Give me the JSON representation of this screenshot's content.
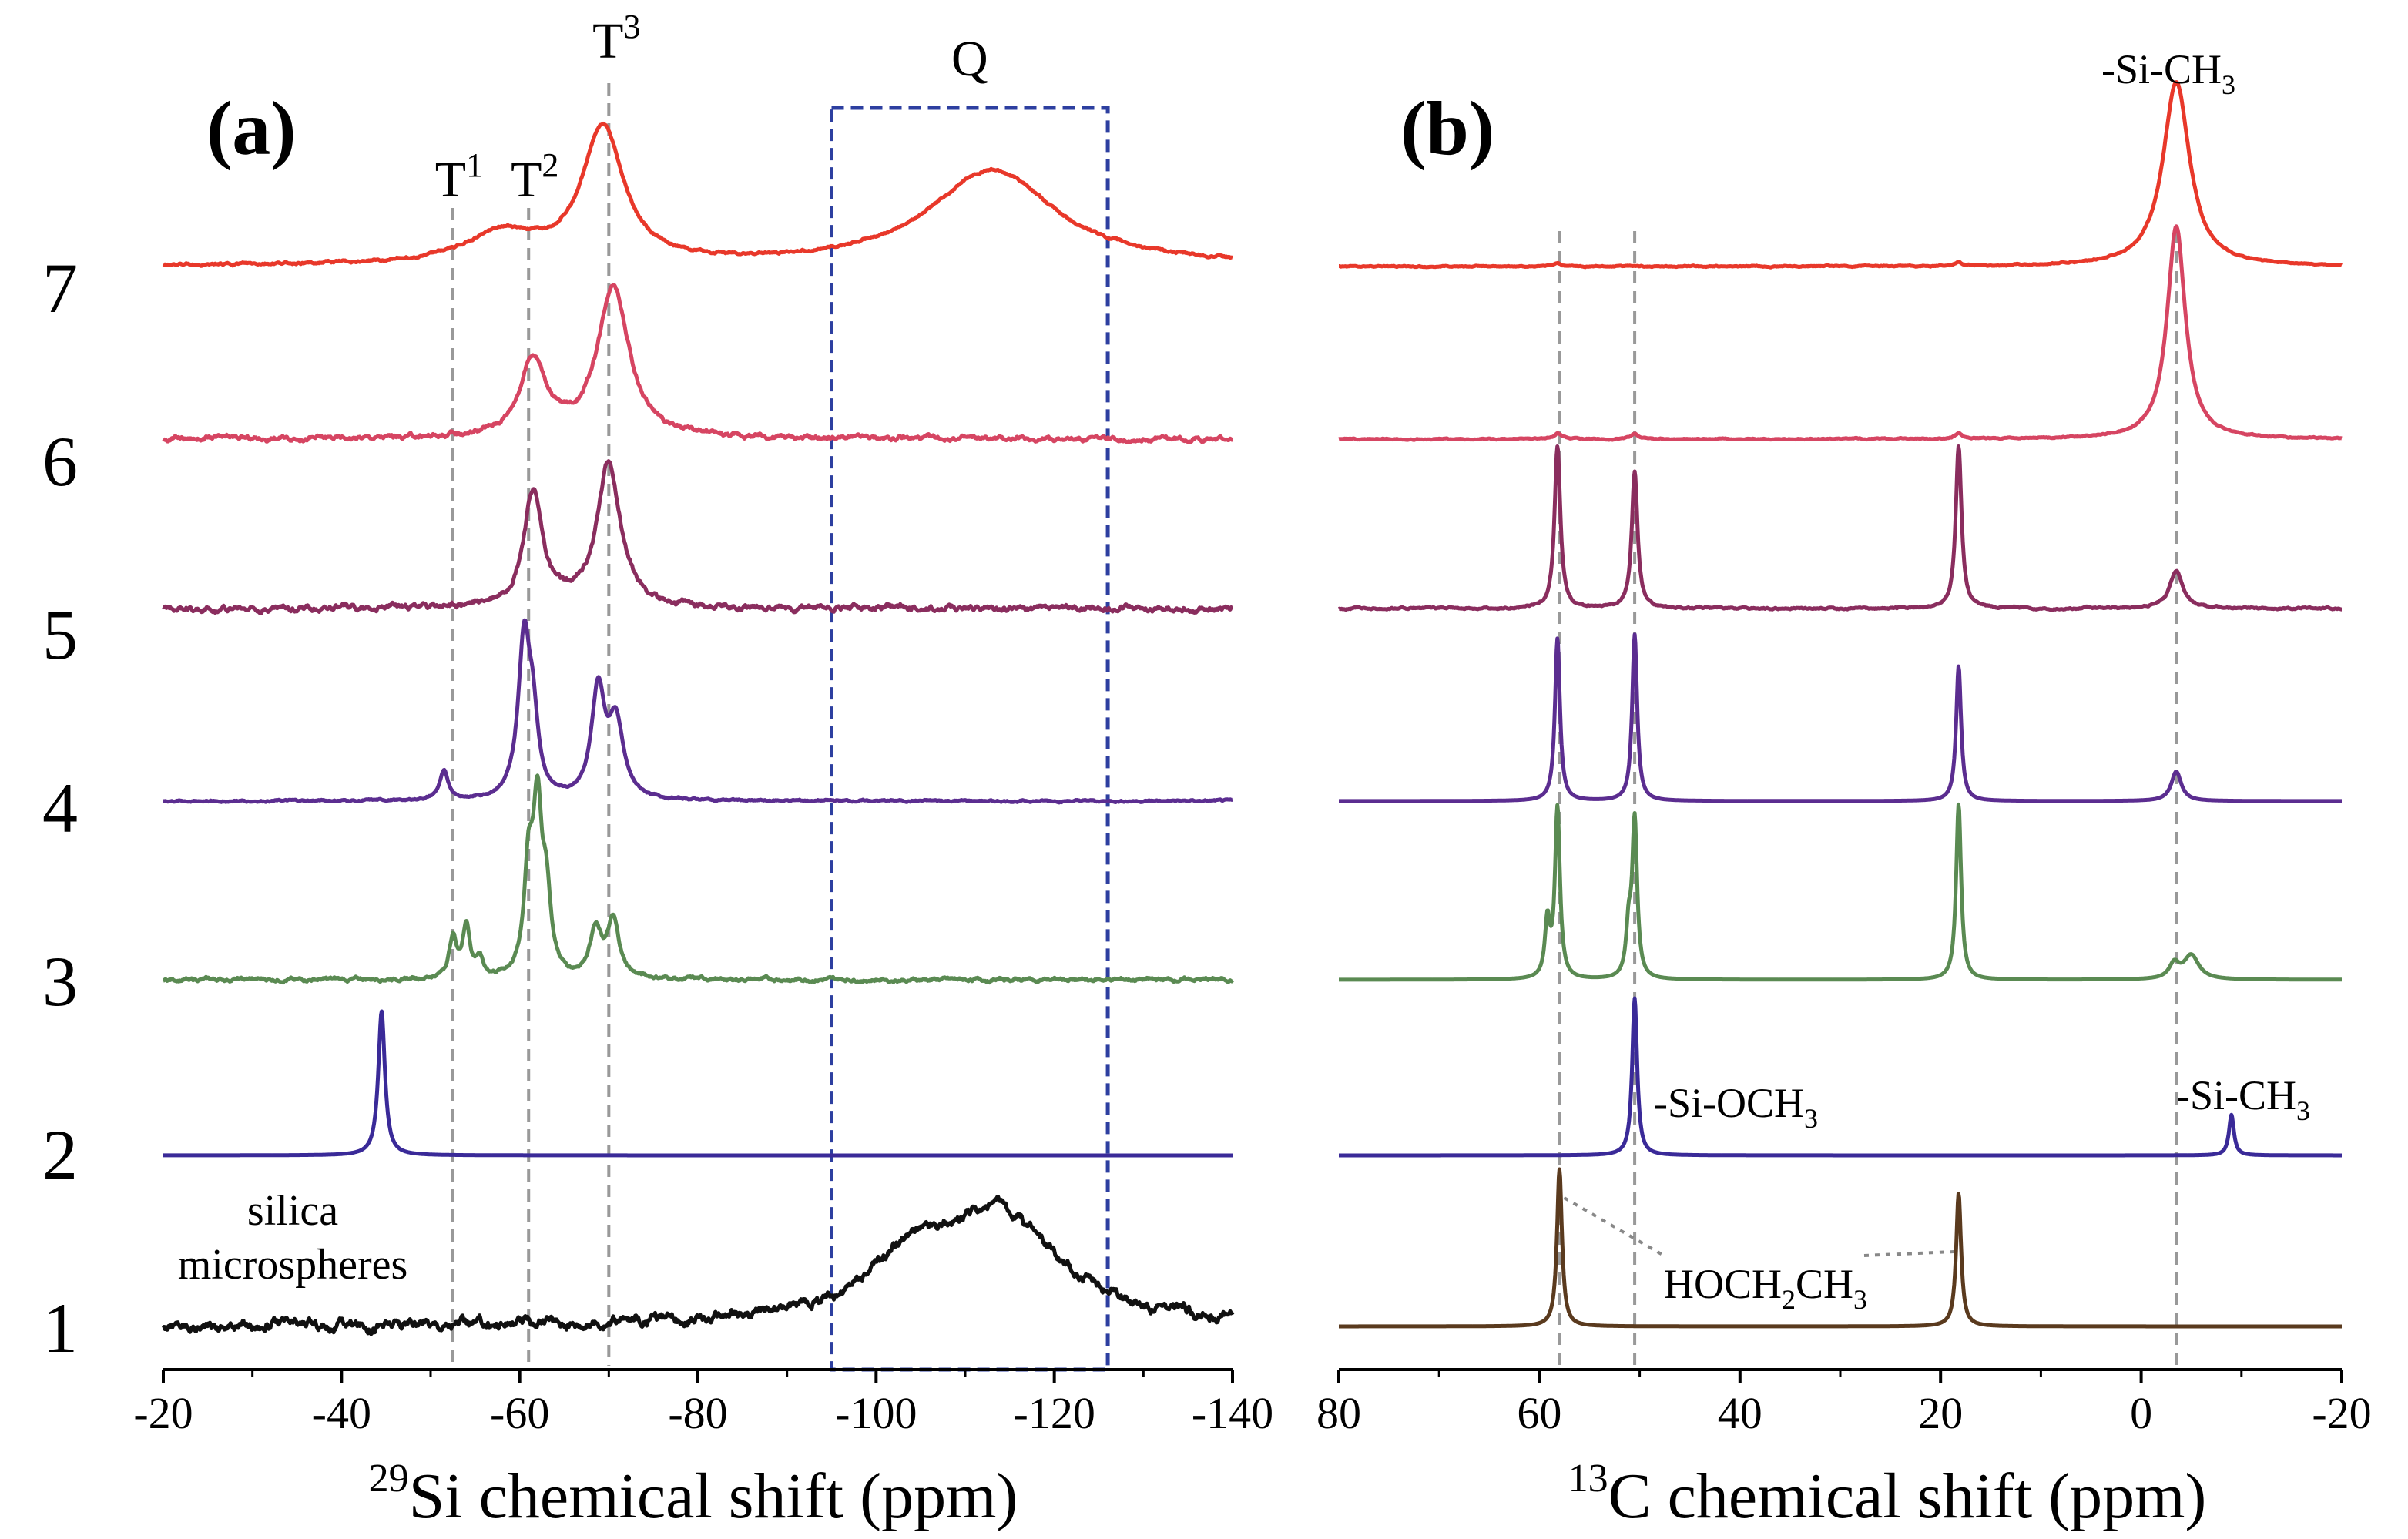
{
  "figure": {
    "row_labels": [
      "1",
      "2",
      "3",
      "4",
      "5",
      "6",
      "7"
    ]
  },
  "chart_data": [
    {
      "type": "line",
      "panel_label": "(a)",
      "xlabel_sup": "29",
      "xlabel_main": "Si chemical shift (ppm)",
      "xlim": [
        -20,
        -140
      ],
      "xticks": [
        -20,
        -40,
        -60,
        -80,
        -100,
        -120,
        -140
      ],
      "xtick_labels": [
        "-20",
        "-40",
        "-60",
        "-80",
        "-100",
        "-120",
        "-140"
      ],
      "grid": false,
      "reference_lines": [
        {
          "label": "T",
          "sup": "1",
          "x": -52.5
        },
        {
          "label": "T",
          "sup": "2",
          "x": -61
        },
        {
          "label": "T",
          "sup": "3",
          "x": -70
        }
      ],
      "region": {
        "label": "Q",
        "x_from": -95,
        "x_to": -126,
        "style": "dashed box"
      },
      "annotations": [
        {
          "text": "silica",
          "x": -32,
          "row": 1
        },
        {
          "text": "microspheres",
          "x": -32,
          "row": 1
        }
      ],
      "series": [
        {
          "name": "1",
          "color": "#111111",
          "baseline_row": 1,
          "peaks": [
            {
              "x": -114,
              "height": 0.57,
              "width": 8
            },
            {
              "x": -104,
              "height": 0.28,
              "width": 6
            }
          ],
          "noise": 0.018
        },
        {
          "name": "2",
          "color": "#3a2a98",
          "baseline_row": 2,
          "peaks": [
            {
              "x": -44.5,
              "height": 0.78,
              "width": 0.45
            }
          ],
          "noise": 0.0
        },
        {
          "name": "3",
          "color": "#5a8a52",
          "baseline_row": 3,
          "peaks": [
            {
              "x": -52.5,
              "height": 0.22,
              "width": 0.5
            },
            {
              "x": -54,
              "height": 0.28,
              "width": 0.5
            },
            {
              "x": -55.5,
              "height": 0.1,
              "width": 0.5
            },
            {
              "x": -61,
              "height": 0.55,
              "width": 0.6
            },
            {
              "x": -62,
              "height": 0.85,
              "width": 0.6
            },
            {
              "x": -63,
              "height": 0.4,
              "width": 0.6
            },
            {
              "x": -68.5,
              "height": 0.25,
              "width": 0.8
            },
            {
              "x": -70.5,
              "height": 0.3,
              "width": 0.8
            }
          ],
          "noise": 0.006
        },
        {
          "name": "4",
          "color": "#5b2d90",
          "baseline_row": 4,
          "peaks": [
            {
              "x": -51.5,
              "height": 0.15,
              "width": 0.6
            },
            {
              "x": -60.5,
              "height": 0.85,
              "width": 0.8
            },
            {
              "x": -61.5,
              "height": 0.35,
              "width": 0.7
            },
            {
              "x": -68.8,
              "height": 0.58,
              "width": 0.9
            },
            {
              "x": -70.8,
              "height": 0.4,
              "width": 1.0
            }
          ],
          "noise": 0.003
        },
        {
          "name": "5",
          "color": "#8a2d5e",
          "baseline_row": 5,
          "peaks": [
            {
              "x": -61.5,
              "height": 0.62,
              "width": 1.3
            },
            {
              "x": -70,
              "height": 0.78,
              "width": 1.6
            }
          ],
          "noise": 0.01
        },
        {
          "name": "6",
          "color": "#d64562",
          "baseline_row": 6,
          "peaks": [
            {
              "x": -61.5,
              "height": 0.42,
              "width": 1.8
            },
            {
              "x": -70.5,
              "height": 0.83,
              "width": 2.1
            }
          ],
          "noise": 0.008
        },
        {
          "name": "7",
          "color": "#e8382a",
          "baseline_row": 7,
          "peaks": [
            {
              "x": -69.3,
              "height": 0.73,
              "width": 2.8
            },
            {
              "x": -58,
              "height": 0.16,
              "width": 5
            },
            {
              "x": -113,
              "height": 0.52,
              "width": 8.5
            }
          ],
          "noise": 0.004
        }
      ]
    },
    {
      "type": "line",
      "panel_label": "(b)",
      "xlabel_sup": "13",
      "xlabel_main": "C chemical shift (ppm)",
      "xlim": [
        80,
        -20
      ],
      "xticks": [
        80,
        60,
        40,
        20,
        0,
        -20
      ],
      "xtick_labels": [
        "80",
        "60",
        "40",
        "20",
        "0",
        "-20"
      ],
      "grid": false,
      "reference_lines": [
        {
          "x": 58
        },
        {
          "x": 50.5
        },
        {
          "x": -3.5
        }
      ],
      "annotations": [
        {
          "id": "top_sich3",
          "text": "-Si-CH",
          "sub": "3"
        },
        {
          "id": "sioch3",
          "text": "-Si-OCH",
          "sub": "3"
        },
        {
          "id": "sich3",
          "text": "-Si-CH",
          "sub": "3"
        },
        {
          "id": "ethanol",
          "text_a": "HOCH",
          "sub_a": "2",
          "text_b": "CH",
          "sub_b": "3",
          "color": "#7a4a22"
        }
      ],
      "series": [
        {
          "name": "1",
          "color": "#5a3a1e",
          "baseline_row": 1,
          "peaks": [
            {
              "x": 58,
              "height": 0.85,
              "width": 0.3
            },
            {
              "x": 18.2,
              "height": 0.72,
              "width": 0.3
            }
          ],
          "noise": 0.0
        },
        {
          "name": "2",
          "color": "#3a2a98",
          "baseline_row": 2,
          "peaks": [
            {
              "x": 50.5,
              "height": 0.85,
              "width": 0.3
            },
            {
              "x": -9,
              "height": 0.22,
              "width": 0.3
            }
          ],
          "noise": 0.0
        },
        {
          "name": "3",
          "color": "#5a8a52",
          "baseline_row": 3,
          "peaks": [
            {
              "x": 58.2,
              "height": 0.92,
              "width": 0.3
            },
            {
              "x": 59.2,
              "height": 0.3,
              "width": 0.3
            },
            {
              "x": 50.5,
              "height": 0.85,
              "width": 0.3
            },
            {
              "x": 51.1,
              "height": 0.25,
              "width": 0.3
            },
            {
              "x": 18.2,
              "height": 0.95,
              "width": 0.3
            },
            {
              "x": -5,
              "height": 0.13,
              "width": 0.9
            },
            {
              "x": -3.3,
              "height": 0.08,
              "width": 0.6
            }
          ],
          "noise": 0.0
        },
        {
          "name": "4",
          "color": "#5b2d90",
          "baseline_row": 4,
          "peaks": [
            {
              "x": 58.2,
              "height": 0.88,
              "width": 0.3
            },
            {
              "x": 50.5,
              "height": 0.9,
              "width": 0.3
            },
            {
              "x": 18.2,
              "height": 0.73,
              "width": 0.3
            },
            {
              "x": -3.5,
              "height": 0.16,
              "width": 0.6
            }
          ],
          "noise": 0.0
        },
        {
          "name": "5",
          "color": "#8a2d5e",
          "baseline_row": 5,
          "peaks": [
            {
              "x": 58.2,
              "height": 0.88,
              "width": 0.35
            },
            {
              "x": 50.5,
              "height": 0.74,
              "width": 0.35
            },
            {
              "x": 18.2,
              "height": 0.88,
              "width": 0.35
            },
            {
              "x": -3.5,
              "height": 0.2,
              "width": 0.8
            }
          ],
          "noise": 0.003
        },
        {
          "name": "6",
          "color": "#d64562",
          "baseline_row": 6,
          "peaks": [
            {
              "x": 58.2,
              "height": 0.03,
              "width": 0.4
            },
            {
              "x": 50.5,
              "height": 0.03,
              "width": 0.4
            },
            {
              "x": 18.2,
              "height": 0.03,
              "width": 0.4
            },
            {
              "x": -3.5,
              "height": 1.15,
              "width": 1.1
            }
          ],
          "noise": 0.002
        },
        {
          "name": "7",
          "color": "#e8382a",
          "baseline_row": 7,
          "peaks": [
            {
              "x": 58.2,
              "height": 0.02,
              "width": 0.4
            },
            {
              "x": 18.2,
              "height": 0.02,
              "width": 0.4
            },
            {
              "x": -3.5,
              "height": 1.0,
              "width": 1.6
            }
          ],
          "noise": 0.002
        }
      ]
    }
  ]
}
